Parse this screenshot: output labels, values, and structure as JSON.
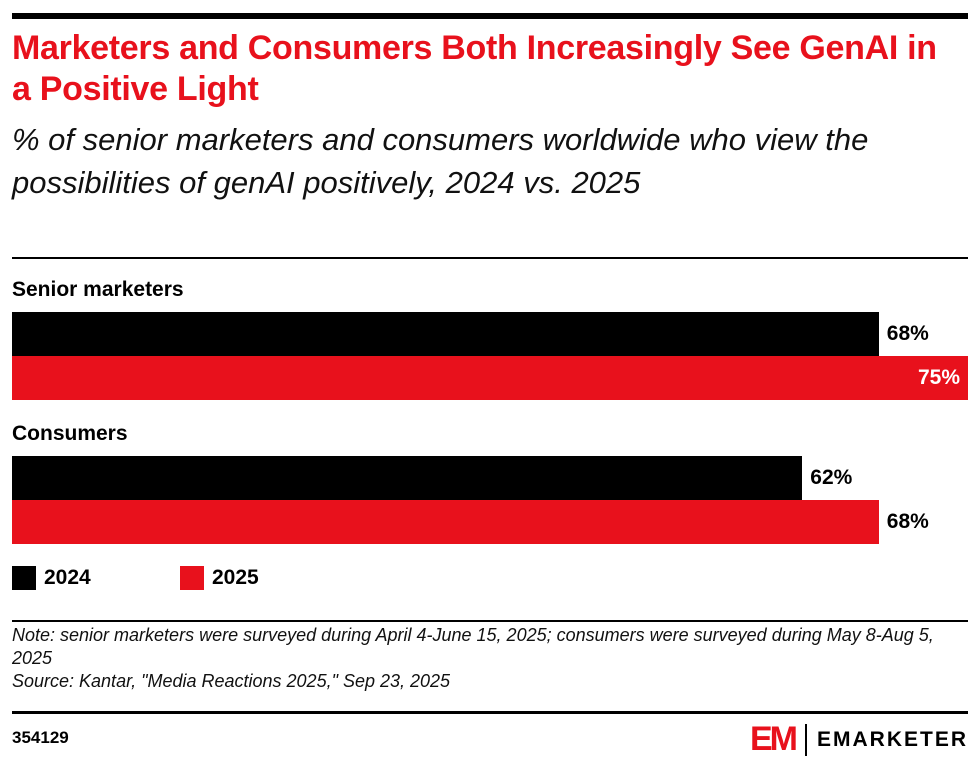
{
  "title": "Marketers and Consumers Both Increasingly See GenAI in a Positive Light",
  "subtitle": "% of senior marketers and consumers worldwide who view the possibilities of genAI positively, 2024 vs. 2025",
  "chart_data": {
    "type": "bar",
    "orientation": "horizontal",
    "categories": [
      "Senior marketers",
      "Consumers"
    ],
    "series": [
      {
        "name": "2024",
        "color": "#000000",
        "values": [
          68,
          62
        ],
        "labels": [
          "68%",
          "62%"
        ]
      },
      {
        "name": "2025",
        "color": "#e8111c",
        "values": [
          75,
          68
        ],
        "labels": [
          "75%",
          "68%"
        ]
      }
    ],
    "xlim": [
      0,
      75
    ],
    "legend": "bottom-left",
    "grid": false
  },
  "note": "Note: senior marketers were surveyed during April 4-June 15, 2025; consumers were surveyed during May 8-Aug 5, 2025",
  "source": "Source: Kantar, \"Media Reactions 2025,\" Sep 23, 2025",
  "chart_id": "354129",
  "logo": {
    "mark": "EM",
    "name": "EMARKETER"
  }
}
